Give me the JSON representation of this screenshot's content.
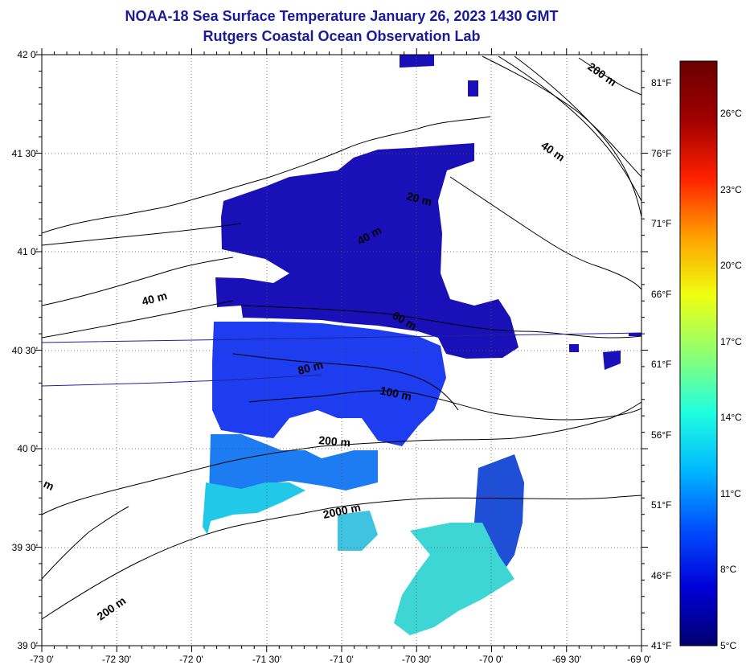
{
  "title": {
    "line1": "NOAA-18 Sea Surface Temperature January 26, 2023 1430 GMT",
    "line2": "Rutgers Coastal Ocean Observation Lab"
  },
  "map": {
    "lat_labels": [
      "42 0'",
      "41 30'",
      "41 0'",
      "40 30'",
      "40 0'",
      "39 30'",
      "39 0'"
    ],
    "lon_labels": [
      "-73 0'",
      "-72 30'",
      "-72 0'",
      "-71 30'",
      "-71 0'",
      "-70 30'",
      "-70 0'",
      "-69 30'",
      "-69 0'"
    ],
    "contour_labels": [
      "200 m",
      "40 m",
      "20 m",
      "40 m",
      "40 m",
      "60 m",
      "80 m",
      "100 m",
      "200 m",
      "2000 m",
      "200 m",
      "m"
    ]
  },
  "colorbar": {
    "fahrenheit_labels": [
      "81°F",
      "76°F",
      "71°F",
      "66°F",
      "61°F",
      "56°F",
      "51°F",
      "46°F",
      "41°F"
    ],
    "celsius_labels": [
      "26°C",
      "23°C",
      "20°C",
      "17°C",
      "14°C",
      "11°C",
      "8°C",
      "5°C"
    ],
    "colors": [
      "#00006f",
      "#0000d8",
      "#0050ff",
      "#00b8ff",
      "#20ffdf",
      "#8fff70",
      "#f0ff10",
      "#ffa000",
      "#ff2000",
      "#a00000",
      "#6a0000"
    ]
  }
}
